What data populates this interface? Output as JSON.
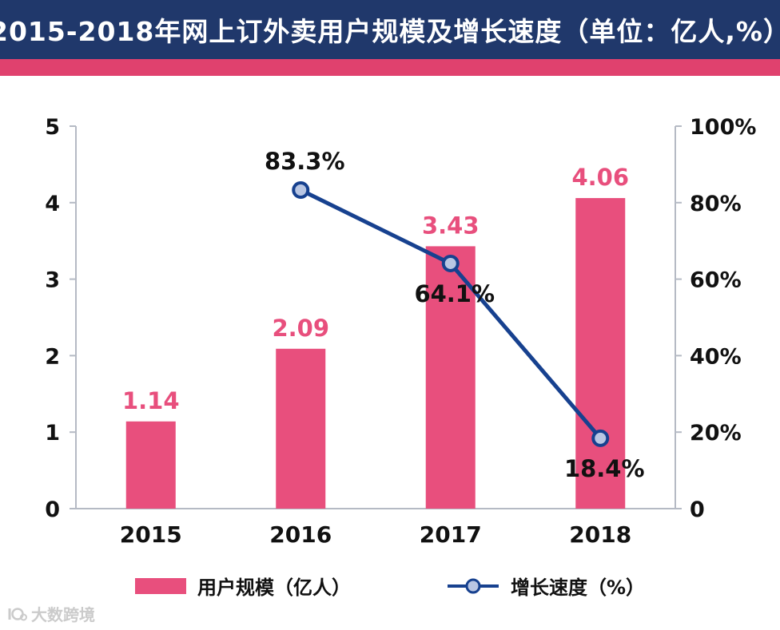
{
  "header": {
    "title": "2015-2018年网上订外卖用户规模及增长速度（单位：亿人,%）"
  },
  "chart_data": {
    "type": "combo",
    "title": "2015-2018年网上订外卖用户规模及增长速度（单位：亿人,%）",
    "categories": [
      "2015",
      "2016",
      "2017",
      "2018"
    ],
    "series": [
      {
        "name": "用户规模（亿人）",
        "type": "bar",
        "axis": "left",
        "values": [
          1.14,
          2.09,
          3.43,
          4.06
        ],
        "labels": [
          "1.14",
          "2.09",
          "3.43",
          "4.06"
        ],
        "color": "#e84f7d"
      },
      {
        "name": "增长速度（%）",
        "type": "line",
        "axis": "right",
        "values": [
          null,
          83.3,
          64.1,
          18.4
        ],
        "labels": [
          null,
          "83.3%",
          "64.1%",
          "18.4%"
        ],
        "color": "#17418f",
        "marker_fill": "#b9c6e3"
      }
    ],
    "left_axis": {
      "min": 0,
      "max": 5,
      "ticks": [
        0,
        1,
        2,
        3,
        4,
        5
      ],
      "tick_labels": [
        "0",
        "1",
        "2",
        "3",
        "4",
        "5"
      ]
    },
    "right_axis": {
      "min": 0,
      "max": 100,
      "tick_labels": [
        "0",
        "20%",
        "40%",
        "60%",
        "80%",
        "100%"
      ]
    },
    "grid": false,
    "legend_position": "bottom",
    "axis_line_color": "#b5bac4"
  },
  "legend": {
    "items": [
      {
        "label": "用户规模（亿人）"
      },
      {
        "label": "增长速度（%）"
      }
    ]
  },
  "watermark": {
    "text": "大数跨境"
  },
  "colors": {
    "header_bg": "#20386b",
    "accent_strip": "#e0416e",
    "bar": "#e84f7d",
    "line": "#17418f",
    "marker_fill": "#b9c6e3"
  }
}
